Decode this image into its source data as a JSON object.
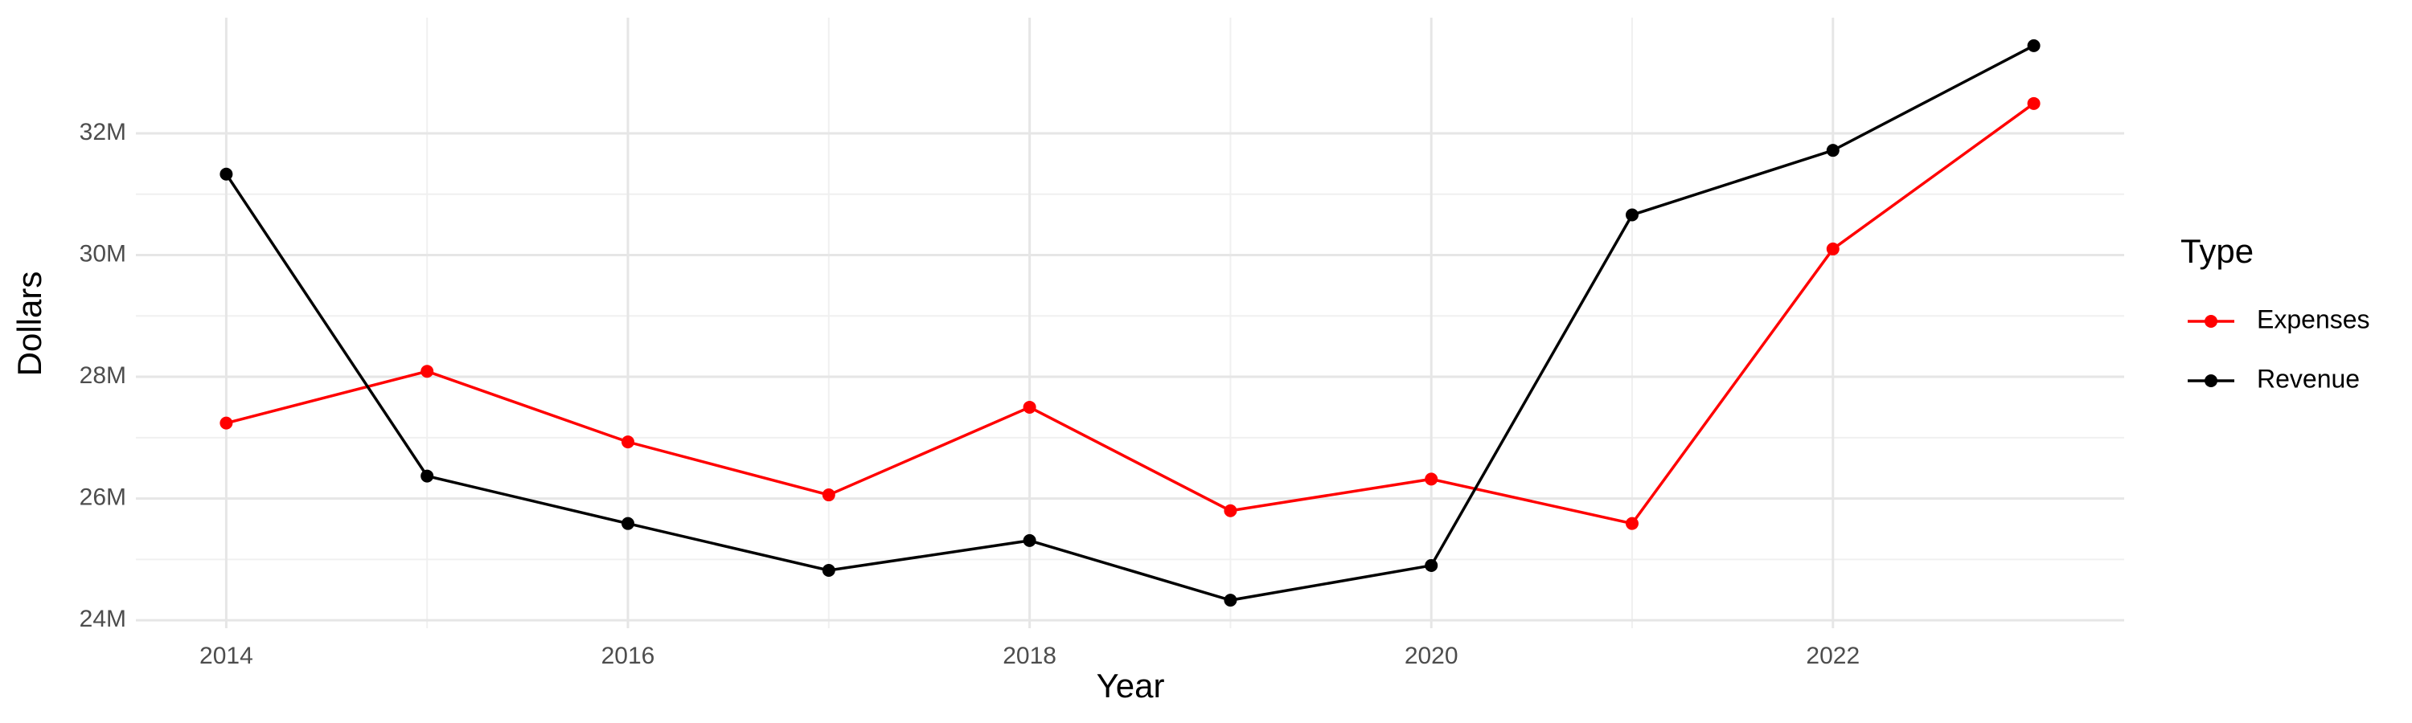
{
  "chart_data": {
    "type": "line",
    "x_label": "Year",
    "y_label": "Dollars",
    "legend_title": "Type",
    "x": [
      2014,
      2015,
      2016,
      2017,
      2018,
      2019,
      2020,
      2021,
      2022,
      2023
    ],
    "series": [
      {
        "name": "Expenses",
        "color": "#ff0000",
        "values": [
          27240000,
          28090000,
          26930000,
          26060000,
          27500000,
          25800000,
          26320000,
          25590000,
          30100000,
          32490000
        ]
      },
      {
        "name": "Revenue",
        "color": "#000000",
        "values": [
          31330000,
          26370000,
          25590000,
          24820000,
          25310000,
          24330000,
          24900000,
          30660000,
          31720000,
          33440000
        ]
      }
    ],
    "xlim": [
      2013.55,
      2023.45
    ],
    "xticks": [
      2014,
      2016,
      2018,
      2020,
      2022
    ],
    "ylim": [
      23870000,
      33900000
    ],
    "yticks": [
      {
        "value": 24000000,
        "label": "24M"
      },
      {
        "value": 26000000,
        "label": "26M"
      },
      {
        "value": 28000000,
        "label": "28M"
      },
      {
        "value": 30000000,
        "label": "30M"
      },
      {
        "value": 32000000,
        "label": "32M"
      }
    ],
    "grid": true,
    "legend": "right"
  }
}
